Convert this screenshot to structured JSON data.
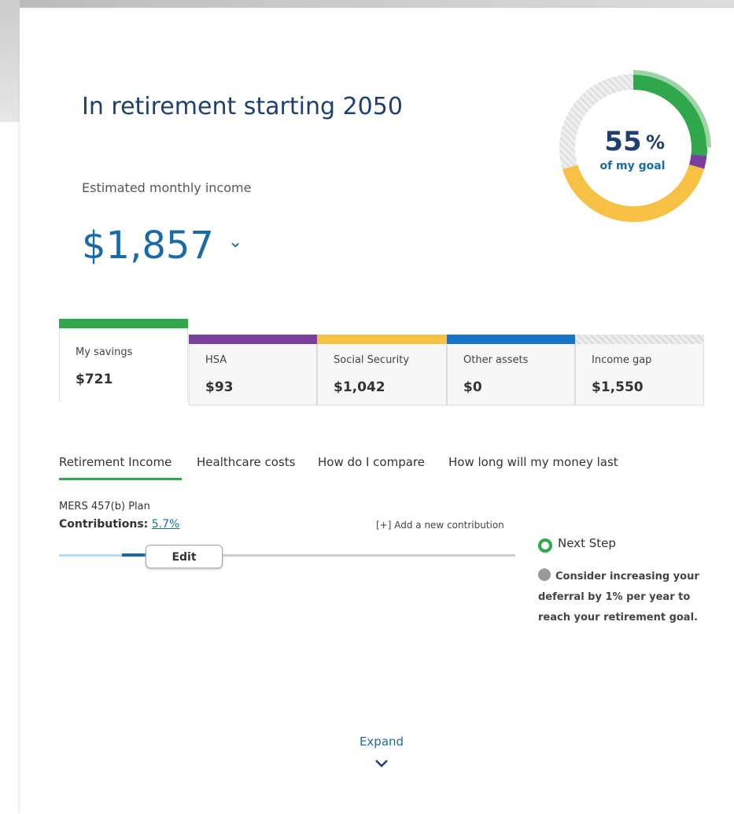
{
  "header": {
    "title": "In retirement starting 2050",
    "subtitle": "Estimated monthly income",
    "amount": "$1,857"
  },
  "gauge": {
    "percent": "55",
    "percent_sign": "%",
    "caption": "of my goal"
  },
  "tiles": [
    {
      "label": "My savings",
      "amount": "$721"
    },
    {
      "label": "HSA",
      "amount": "$93"
    },
    {
      "label": "Social Security",
      "amount": "$1,042"
    },
    {
      "label": "Other assets",
      "amount": "$0"
    },
    {
      "label": "Income gap",
      "amount": "$1,550"
    }
  ],
  "tabs": [
    "Retirement Income",
    "Healthcare costs",
    "How do I compare",
    "How long will my money last"
  ],
  "plan": {
    "name": "MERS 457(b) Plan",
    "contributions_label": "Contributions:",
    "contributions_value": "5.7%",
    "add": "[+] Add a new contribution",
    "edit": "Edit"
  },
  "next_step": {
    "title": "Next Step",
    "text": "Consider increasing your deferral by 1% per year to reach your retirement goal."
  },
  "footer": {
    "expand": "Expand"
  }
}
